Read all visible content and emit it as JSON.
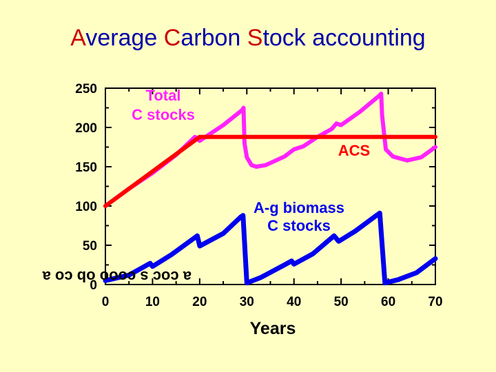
{
  "title": {
    "parts": [
      {
        "text": "A",
        "color": "#cc0000"
      },
      {
        "text": "verage ",
        "color": "#0000aa"
      },
      {
        "text": "C",
        "color": "#cc0000"
      },
      {
        "text": "arbon ",
        "color": "#0000aa"
      },
      {
        "text": "S",
        "color": "#cc0000"
      },
      {
        "text": "tock accounting",
        "color": "#0000aa"
      }
    ]
  },
  "chart_data": {
    "type": "line",
    "title": "Average Carbon Stock accounting",
    "xlabel": "Years",
    "ylabel_garbled": "a coc s cooo ob co a",
    "xlim": [
      0,
      70
    ],
    "ylim": [
      0,
      250
    ],
    "x_ticks": [
      0,
      10,
      20,
      30,
      40,
      50,
      60,
      70
    ],
    "y_ticks": [
      0,
      50,
      100,
      150,
      200,
      250
    ],
    "series": [
      {
        "name": "Total C stocks",
        "label": "Total\nC stocks",
        "color": "#ff22ff",
        "points": [
          [
            0,
            100
          ],
          [
            5,
            122
          ],
          [
            10,
            142
          ],
          [
            15,
            165
          ],
          [
            19,
            188
          ],
          [
            20,
            183
          ],
          [
            25,
            203
          ],
          [
            29,
            222
          ],
          [
            29.3,
            225
          ],
          [
            29.5,
            180
          ],
          [
            30,
            162
          ],
          [
            31,
            152
          ],
          [
            32,
            150
          ],
          [
            34,
            152
          ],
          [
            38,
            163
          ],
          [
            40,
            172
          ],
          [
            42,
            176
          ],
          [
            45,
            188
          ],
          [
            48,
            198
          ],
          [
            49,
            205
          ],
          [
            50,
            203
          ],
          [
            54,
            220
          ],
          [
            58,
            240
          ],
          [
            58.5,
            243
          ],
          [
            58.7,
            215
          ],
          [
            59.5,
            172
          ],
          [
            61,
            163
          ],
          [
            64,
            158
          ],
          [
            67,
            162
          ],
          [
            70,
            175
          ]
        ]
      },
      {
        "name": "ACS",
        "label": "ACS",
        "color": "#ff0000",
        "points": [
          [
            0,
            100
          ],
          [
            20,
            188
          ],
          [
            70,
            188
          ]
        ]
      },
      {
        "name": "A-g biomass C stocks",
        "label": "A-g biomass\nC stocks",
        "color": "#0000ee",
        "points": [
          [
            0,
            5
          ],
          [
            5,
            12
          ],
          [
            9.5,
            27
          ],
          [
            10,
            23
          ],
          [
            14,
            38
          ],
          [
            19.5,
            62
          ],
          [
            20,
            49
          ],
          [
            25,
            65
          ],
          [
            28.7,
            86
          ],
          [
            29.2,
            88
          ],
          [
            30,
            2
          ],
          [
            33,
            9
          ],
          [
            38,
            25
          ],
          [
            39.5,
            30
          ],
          [
            40,
            26
          ],
          [
            44,
            39
          ],
          [
            48.5,
            62
          ],
          [
            49.5,
            55
          ],
          [
            53,
            68
          ],
          [
            57.5,
            88
          ],
          [
            58.2,
            91
          ],
          [
            59.3,
            2
          ],
          [
            62,
            6
          ],
          [
            66,
            15
          ],
          [
            70,
            33
          ]
        ]
      }
    ],
    "annotations": [
      {
        "text": "Total\nC stocks",
        "color": "#ff22ff"
      },
      {
        "text": "ACS",
        "color": "#ff0000"
      },
      {
        "text": "A-g biomass\nC stocks",
        "color": "#0000ee"
      }
    ]
  }
}
